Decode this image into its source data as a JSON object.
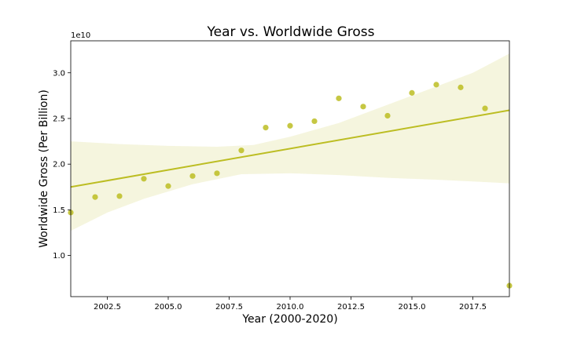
{
  "chart_data": {
    "type": "scatter",
    "title": "Year vs. Worldwide Gross",
    "xlabel": "Year (2000-2020)",
    "ylabel": "Worldwide Gross (Per Billion)",
    "y_offset_label": "1e10",
    "xlim": [
      2001,
      2019
    ],
    "ylim": [
      0.55,
      3.35
    ],
    "xticks": [
      2002.5,
      2005.0,
      2007.5,
      2010.0,
      2012.5,
      2015.0,
      2017.5
    ],
    "xtick_labels": [
      "2002.5",
      "2005.0",
      "2007.5",
      "2010.0",
      "2012.5",
      "2015.0",
      "2017.5"
    ],
    "yticks": [
      1.0,
      1.5,
      2.0,
      2.5,
      3.0
    ],
    "ytick_labels": [
      "1.0",
      "1.5",
      "2.0",
      "2.5",
      "3.0"
    ],
    "grid": false,
    "point_color": "#bcbd22",
    "band_color": "#bcbd22",
    "points": [
      {
        "x": 2001,
        "y": 1.47
      },
      {
        "x": 2002,
        "y": 1.64
      },
      {
        "x": 2003,
        "y": 1.65
      },
      {
        "x": 2004,
        "y": 1.84
      },
      {
        "x": 2005,
        "y": 1.76
      },
      {
        "x": 2006,
        "y": 1.87
      },
      {
        "x": 2007,
        "y": 1.9
      },
      {
        "x": 2008,
        "y": 2.15
      },
      {
        "x": 2009,
        "y": 2.4
      },
      {
        "x": 2010,
        "y": 2.42
      },
      {
        "x": 2011,
        "y": 2.47
      },
      {
        "x": 2012,
        "y": 2.72
      },
      {
        "x": 2013,
        "y": 2.63
      },
      {
        "x": 2014,
        "y": 2.53
      },
      {
        "x": 2015,
        "y": 2.78
      },
      {
        "x": 2016,
        "y": 2.87
      },
      {
        "x": 2017,
        "y": 2.84
      },
      {
        "x": 2018,
        "y": 2.61
      },
      {
        "x": 2019,
        "y": 0.67
      }
    ],
    "regression": {
      "line": [
        {
          "x": 2001,
          "y": 1.75
        },
        {
          "x": 2019,
          "y": 2.59
        }
      ],
      "band_upper": [
        {
          "x": 2001,
          "y": 2.25
        },
        {
          "x": 2003,
          "y": 2.22
        },
        {
          "x": 2005,
          "y": 2.2
        },
        {
          "x": 2007,
          "y": 2.19
        },
        {
          "x": 2008.5,
          "y": 2.21
        },
        {
          "x": 2010,
          "y": 2.3
        },
        {
          "x": 2012,
          "y": 2.45
        },
        {
          "x": 2014,
          "y": 2.65
        },
        {
          "x": 2016,
          "y": 2.85
        },
        {
          "x": 2017.5,
          "y": 3.0
        },
        {
          "x": 2019,
          "y": 3.21
        }
      ],
      "band_lower": [
        {
          "x": 2001,
          "y": 1.27
        },
        {
          "x": 2002.5,
          "y": 1.47
        },
        {
          "x": 2004,
          "y": 1.62
        },
        {
          "x": 2006,
          "y": 1.78
        },
        {
          "x": 2008,
          "y": 1.89
        },
        {
          "x": 2010,
          "y": 1.9
        },
        {
          "x": 2012,
          "y": 1.88
        },
        {
          "x": 2014,
          "y": 1.85
        },
        {
          "x": 2016,
          "y": 1.83
        },
        {
          "x": 2017.5,
          "y": 1.81
        },
        {
          "x": 2019,
          "y": 1.79
        }
      ]
    }
  }
}
